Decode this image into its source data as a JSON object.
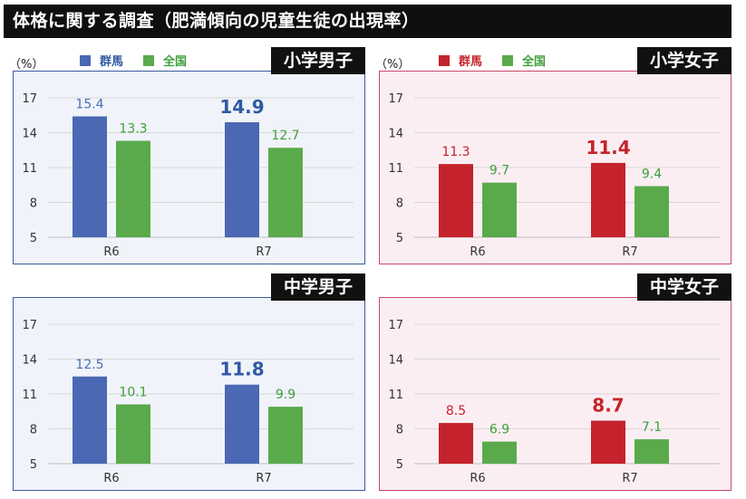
{
  "title": "体格に関する調査（肥満傾向の児童生徒の出現率）",
  "unit_label": "（%）",
  "colors": {
    "gunma_blue": "#4a68b3",
    "gunma_red": "#c4232b",
    "national_green": "#5aaa4c",
    "value_blue_bold": "#2f5aa2",
    "value_blue": "#4a6fb6",
    "value_green": "#3f9f3a",
    "value_red": "#c4232b",
    "border_blue": "#3a5aa0",
    "border_pink": "#c94a6a",
    "bg_blue": "#f1f3fa",
    "bg_pink": "#fbeef3"
  },
  "legends": {
    "left": [
      {
        "label": "群馬",
        "swatch": "gunma_blue",
        "text": "value_blue_bold"
      },
      {
        "label": "全国",
        "swatch": "national_green",
        "text": "value_green"
      }
    ],
    "right": [
      {
        "label": "群馬",
        "swatch": "gunma_red",
        "text": "value_red"
      },
      {
        "label": "全国",
        "swatch": "national_green",
        "text": "value_green"
      }
    ]
  },
  "chart_data": [
    {
      "type": "bar",
      "title": "小学男子",
      "categories": [
        "R6",
        "R7"
      ],
      "ylim": [
        5,
        17
      ],
      "yticks": [
        5,
        8,
        11,
        14,
        17
      ],
      "series": [
        {
          "name": "群馬",
          "values": [
            15.4,
            14.9
          ]
        },
        {
          "name": "全国",
          "values": [
            13.3,
            12.7
          ]
        }
      ],
      "theme": "blue"
    },
    {
      "type": "bar",
      "title": "小学女子",
      "categories": [
        "R6",
        "R7"
      ],
      "ylim": [
        5,
        17
      ],
      "yticks": [
        5,
        8,
        11,
        14,
        17
      ],
      "series": [
        {
          "name": "群馬",
          "values": [
            11.3,
            11.4
          ]
        },
        {
          "name": "全国",
          "values": [
            9.7,
            9.4
          ]
        }
      ],
      "theme": "red"
    },
    {
      "type": "bar",
      "title": "中学男子",
      "categories": [
        "R6",
        "R7"
      ],
      "ylim": [
        5,
        17
      ],
      "yticks": [
        5,
        8,
        11,
        14,
        17
      ],
      "series": [
        {
          "name": "群馬",
          "values": [
            12.5,
            11.8
          ]
        },
        {
          "name": "全国",
          "values": [
            10.1,
            9.9
          ]
        }
      ],
      "theme": "blue"
    },
    {
      "type": "bar",
      "title": "中学女子",
      "categories": [
        "R6",
        "R7"
      ],
      "ylim": [
        5,
        17
      ],
      "yticks": [
        5,
        8,
        11,
        14,
        17
      ],
      "series": [
        {
          "name": "群馬",
          "values": [
            8.5,
            8.7
          ]
        },
        {
          "name": "全国",
          "values": [
            6.9,
            7.1
          ]
        }
      ],
      "theme": "red"
    }
  ]
}
